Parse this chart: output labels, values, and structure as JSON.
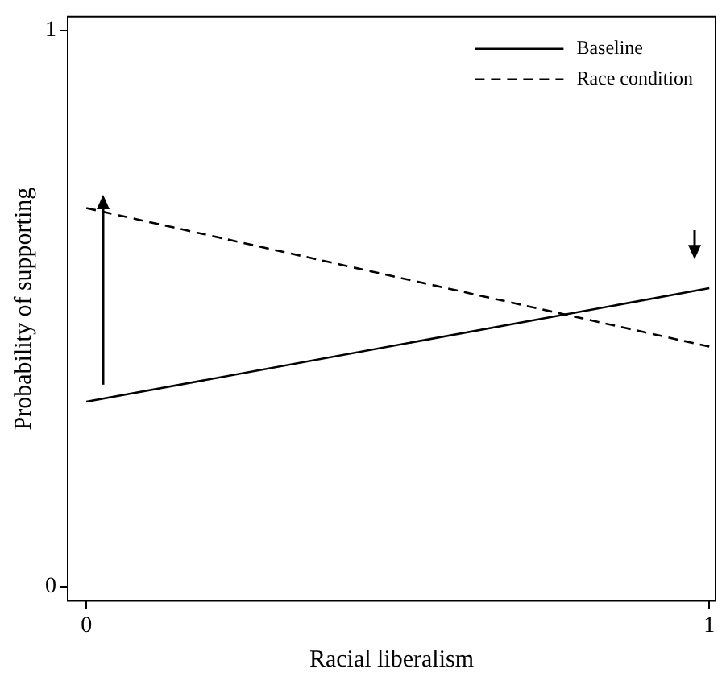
{
  "chart_data": {
    "type": "line",
    "xlabel": "Racial liberalism",
    "ylabel": "Probability of supporting",
    "x": [
      0,
      1
    ],
    "series": [
      {
        "name": "Baseline",
        "color": "#000000",
        "values": [
          0.333,
          0.537
        ],
        "line_style": "solid"
      },
      {
        "name": "Race condition",
        "color": "#000000",
        "values": [
          0.681,
          0.432
        ],
        "line_style": "dashed"
      }
    ],
    "xlim": [
      -0.03,
      1.01
    ],
    "ylim": [
      -0.025,
      1.025
    ],
    "xticks": [
      0,
      1
    ],
    "yticks": [
      0,
      1
    ],
    "grid": false,
    "legend": "top right",
    "marker": "none"
  }
}
